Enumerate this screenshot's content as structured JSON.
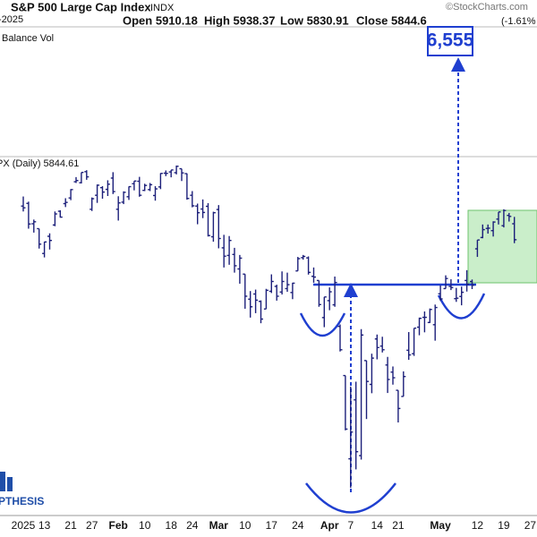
{
  "chart_data": {
    "type": "ohlc",
    "title": "S&P 500 Large Cap Index",
    "symbol": "INDX",
    "date": "-2025",
    "quote": [
      "Open 5910.18",
      "High 5938.37",
      "Low 5830.91",
      "Close 5844.6"
    ],
    "change": "(-1.61%",
    "watermark": "©StockCharts.com",
    "indicator": "Balance Vol",
    "legend": "PX (Daily) 5844.61",
    "annotation": "6,555",
    "logo": "PTHESIS",
    "color": "#1c1f7a",
    "ylim": [
      4744,
      6821
    ],
    "categories": [
      "2025",
      null,
      null,
      null,
      "13",
      null,
      null,
      null,
      null,
      "21",
      null,
      null,
      null,
      "27",
      null,
      null,
      null,
      null,
      "Feb",
      null,
      null,
      null,
      null,
      "10",
      null,
      null,
      null,
      null,
      "18",
      null,
      null,
      null,
      "24",
      null,
      null,
      null,
      null,
      "Mar",
      null,
      null,
      null,
      null,
      "10",
      null,
      null,
      null,
      null,
      "17",
      null,
      null,
      null,
      null,
      "24",
      null,
      null,
      null,
      null,
      null,
      "Apr",
      null,
      null,
      null,
      "7",
      null,
      null,
      null,
      null,
      "14",
      null,
      null,
      null,
      "21",
      null,
      null,
      null,
      null,
      null,
      null,
      null,
      "May",
      null,
      null,
      null,
      null,
      null,
      null,
      "12",
      null,
      null,
      null,
      null,
      "19",
      null,
      null,
      null,
      null,
      "27"
    ],
    "open": [
      5982,
      5993,
      5910,
      5890,
      5789,
      5859,
      5905,
      5961,
      5992,
      6015,
      6081,
      6077,
      6122,
      5969,
      6026,
      6057,
      6050,
      6096,
      5969,
      5998,
      6020,
      6073,
      6083,
      6046,
      6049,
      6025,
      6060,
      6116,
      6121,
      6118,
      6134,
      6114,
      6026,
      5982,
      5970,
      5981,
      5857,
      5968,
      5812,
      5781,
      5785,
      5726,
      5705,
      5603,
      5624,
      5594,
      5563,
      5635,
      5655,
      5632,
      5646,
      5630,
      5718,
      5772,
      5771,
      5696,
      5679,
      5528,
      5597,
      5580,
      5492,
      5292,
      4953,
      5193,
      4966,
      5353,
      5256,
      5441,
      5412,
      5335,
      5306,
      5232,
      5207,
      5395,
      5381,
      5489,
      5529,
      5508,
      5499,
      5625,
      5646,
      5655,
      5605,
      5614,
      5679,
      5675,
      5808,
      5854,
      5891,
      5882,
      5929,
      5902,
      5944,
      5910,
      null,
      null,
      null
    ],
    "high": [
      6021,
      6000,
      5927,
      5890,
      5837,
      5871,
      5960,
      5965,
      6014,
      6051,
      6100,
      6119,
      6128,
      6017,
      6070,
      6063,
      6087,
      6120,
      6022,
      6042,
      6062,
      6084,
      6101,
      6073,
      6076,
      6063,
      6116,
      6127,
      6129,
      6147,
      6134,
      6115,
      6043,
      5992,
      6009,
      5994,
      5959,
      5986,
      5865,
      5860,
      5812,
      5783,
      5705,
      5636,
      5642,
      5598,
      5645,
      5704,
      5662,
      5716,
      5711,
      5670,
      5775,
      5783,
      5777,
      5732,
      5679,
      5612,
      5651,
      5695,
      5500,
      5292,
      5247,
      5267,
      5481,
      5353,
      5381,
      5459,
      5450,
      5368,
      5329,
      5232,
      5309,
      5469,
      5485,
      5528,
      5553,
      5565,
      5581,
      5659,
      5700,
      5684,
      5649,
      5654,
      5721,
      5683,
      5844,
      5907,
      5907,
      5920,
      5958,
      5969,
      5954,
      5938,
      null,
      null,
      null
    ],
    "low": [
      5960,
      5890,
      5874,
      5809,
      5773,
      5805,
      5900,
      5935,
      5978,
      6006,
      6076,
      6074,
      6089,
      5962,
      5995,
      6012,
      6023,
      6031,
      5923,
      5990,
      6007,
      6046,
      6020,
      6043,
      6043,
      6004,
      6051,
      6104,
      6099,
      6111,
      6084,
      6008,
      5977,
      5908,
      5933,
      5858,
      5837,
      5810,
      5732,
      5743,
      5711,
      5666,
      5564,
      5528,
      5546,
      5505,
      5563,
      5628,
      5597,
      5622,
      5633,
      5603,
      5718,
      5764,
      5703,
      5670,
      5572,
      5489,
      5558,
      5572,
      5390,
      5069,
      4835,
      4910,
      4950,
      5115,
      5220,
      5358,
      5386,
      5221,
      5255,
      5101,
      5207,
      5356,
      5372,
      5456,
      5468,
      5506,
      5434,
      5597,
      5646,
      5640,
      5592,
      5578,
      5634,
      5644,
      5775,
      5851,
      5870,
      5858,
      5907,
      5895,
      5919,
      5831,
      null,
      null,
      null
    ],
    "close": [
      5975,
      5909,
      5918,
      5827,
      5836,
      5842,
      5950,
      5937,
      5997,
      6049,
      6086,
      6119,
      6101,
      6012,
      6067,
      6039,
      6071,
      6041,
      5995,
      6038,
      6061,
      6084,
      6026,
      6066,
      6069,
      6052,
      6115,
      6115,
      6129,
      6144,
      6117,
      6013,
      5983,
      5955,
      5956,
      5862,
      5955,
      5850,
      5778,
      5842,
      5739,
      5770,
      5615,
      5572,
      5599,
      5522,
      5639,
      5675,
      5615,
      5675,
      5662,
      5668,
      5768,
      5777,
      5712,
      5693,
      5581,
      5612,
      5633,
      5671,
      5397,
      5074,
      5062,
      4982,
      5457,
      5268,
      5363,
      5406,
      5397,
      5276,
      5283,
      5158,
      5288,
      5376,
      5485,
      5525,
      5529,
      5561,
      5569,
      5604,
      5687,
      5650,
      5607,
      5631,
      5664,
      5660,
      5844,
      5886,
      5892,
      5917,
      5958,
      5964,
      5940,
      5845,
      null,
      null,
      null
    ]
  }
}
